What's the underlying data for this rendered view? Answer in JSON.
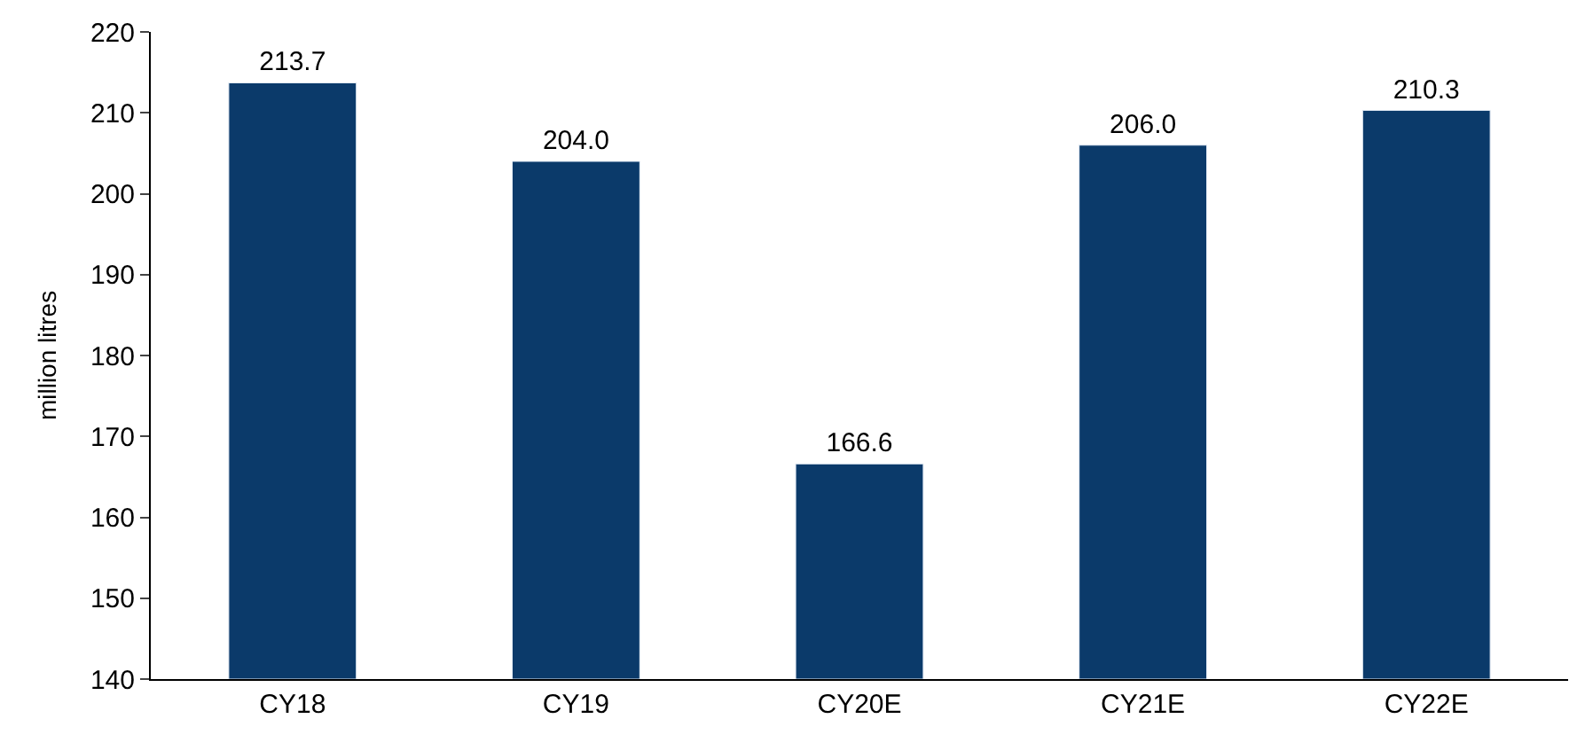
{
  "chart_data": {
    "type": "bar",
    "ylabel": "million litres",
    "categories": [
      "CY18",
      "CY19",
      "CY20E",
      "CY21E",
      "CY22E"
    ],
    "values": [
      213.7,
      204.0,
      166.6,
      206.0,
      210.3
    ],
    "value_labels": [
      "213.7",
      "204.0",
      "166.6",
      "206.0",
      "210.3"
    ],
    "color": "#0b3a6a",
    "ylim": [
      140,
      220
    ],
    "yticks": [
      140,
      150,
      160,
      170,
      180,
      190,
      200,
      210,
      220
    ]
  }
}
